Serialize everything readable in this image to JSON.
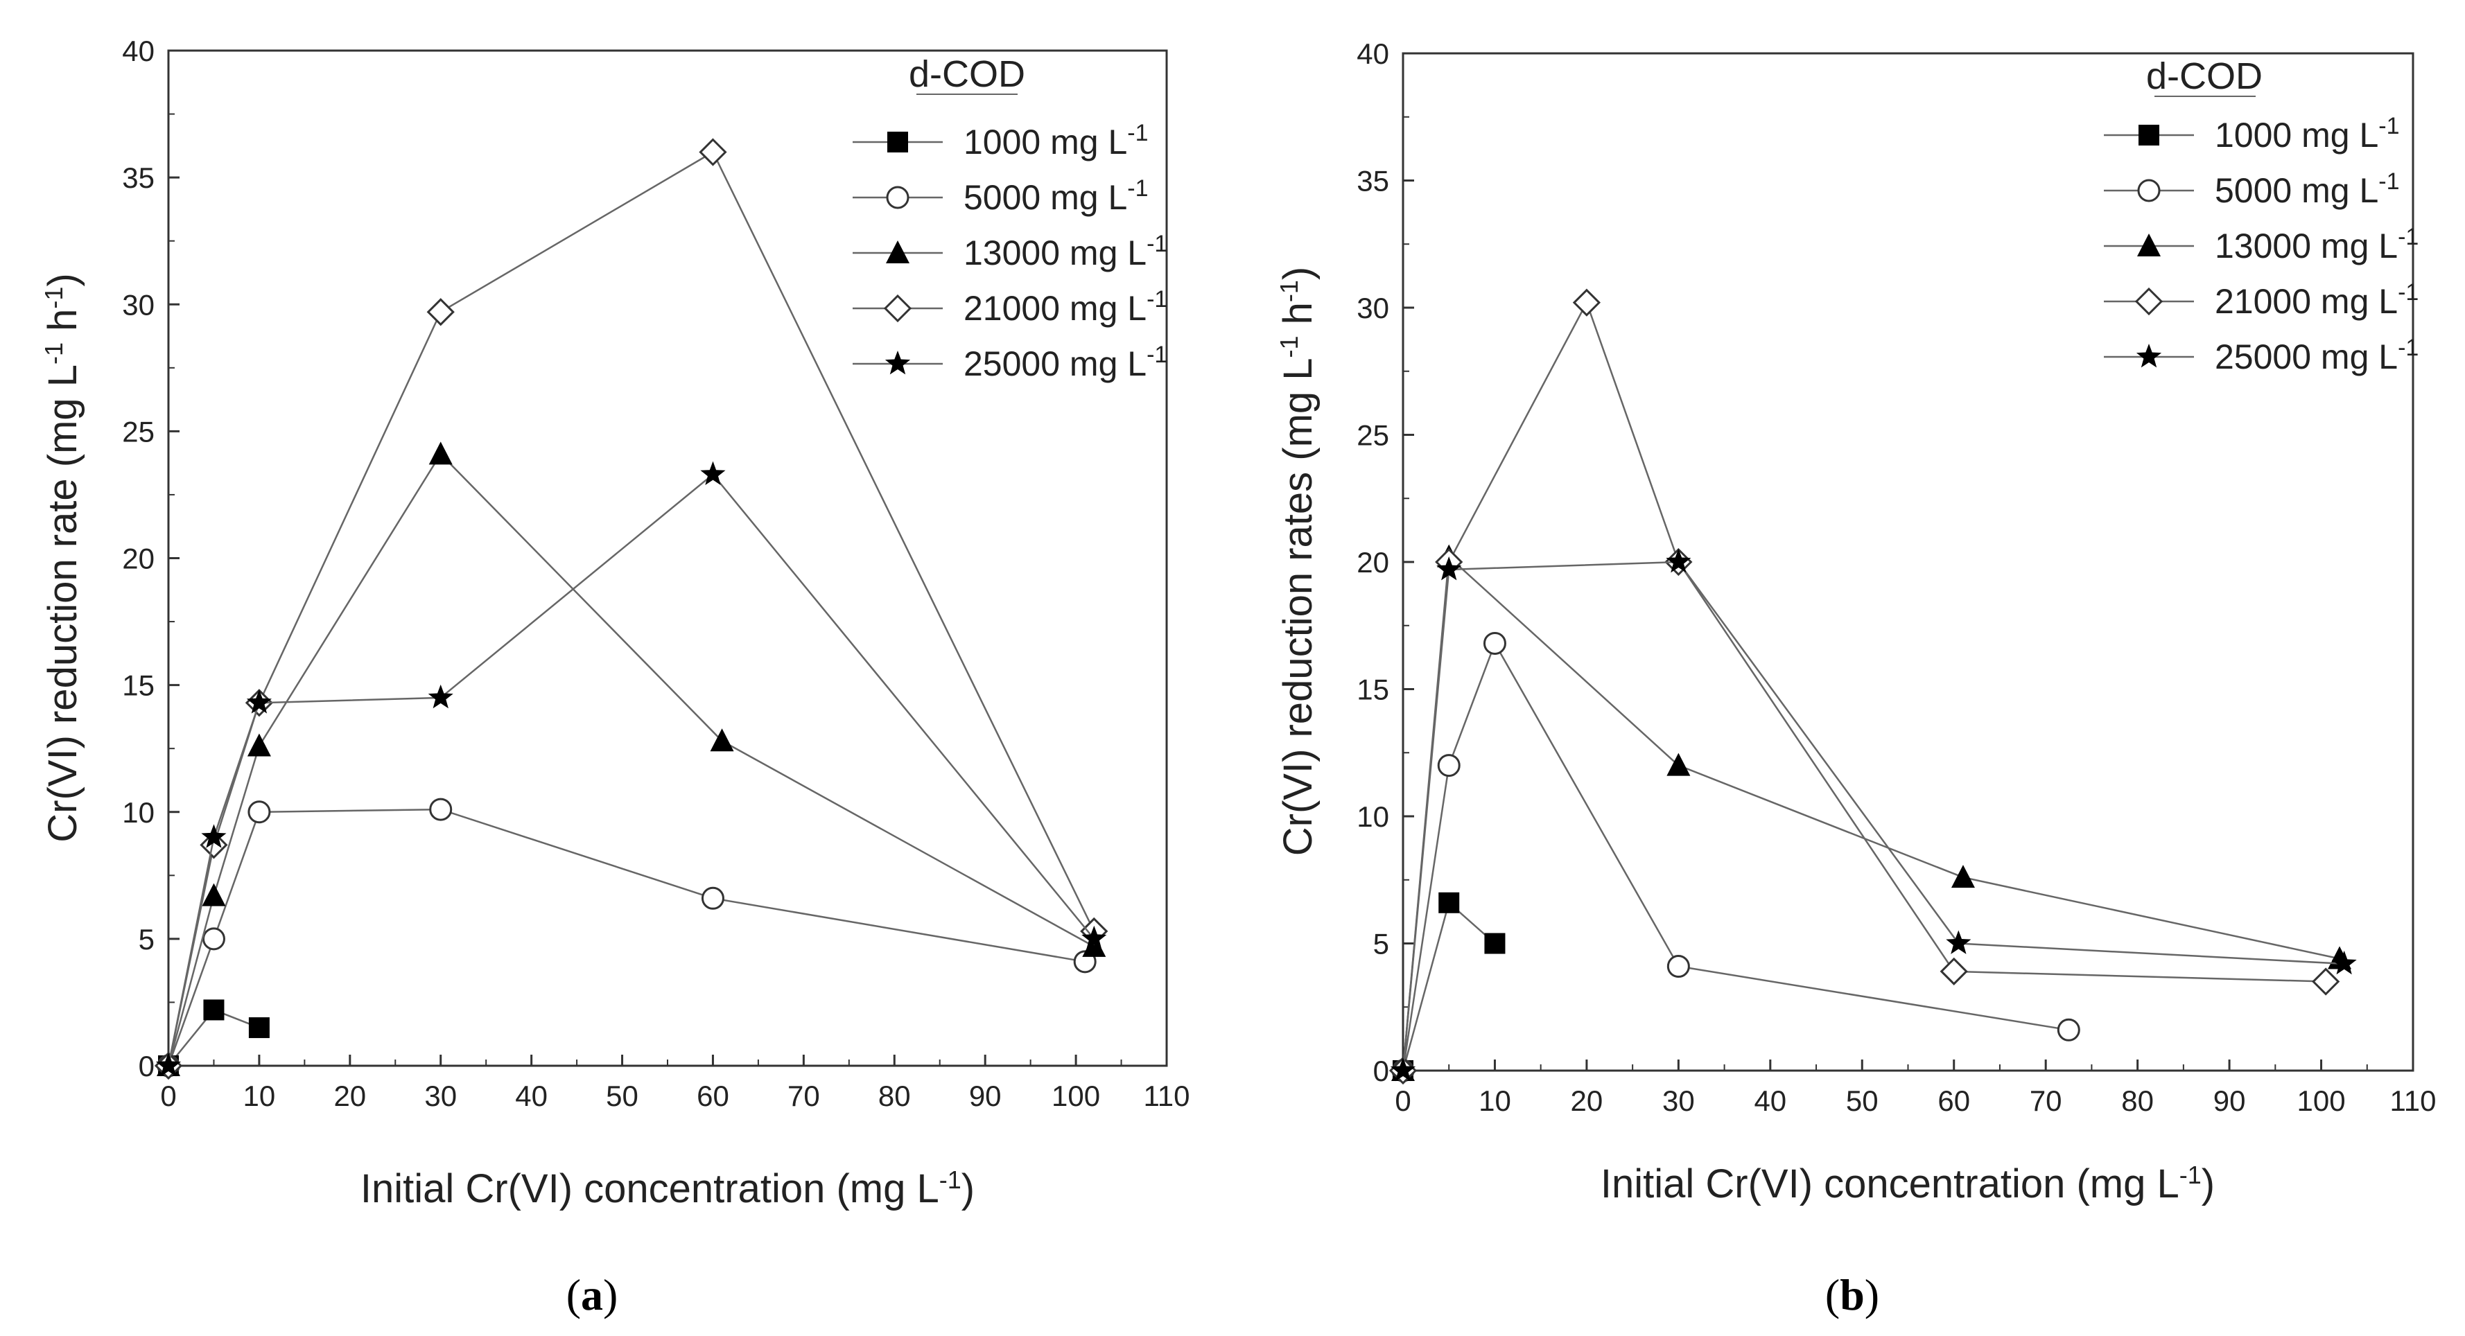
{
  "chart_data": [
    {
      "type": "line",
      "panel_label": "a",
      "xlabel_main": "Initial Cr(VI) concentration (mg L",
      "xlabel_sup": "-1",
      "xlabel_end": ")",
      "ylabel_main": "Cr(VI) reduction rate (mg L",
      "ylabel_sup1": "-1",
      "ylabel_mid": " h",
      "ylabel_sup2": "-1",
      "ylabel_end": ")",
      "xlim": [
        0,
        110
      ],
      "ylim": [
        0,
        40
      ],
      "xticks": [
        0,
        10,
        20,
        30,
        40,
        50,
        60,
        70,
        80,
        90,
        100,
        110
      ],
      "yticks": [
        0,
        5,
        10,
        15,
        20,
        25,
        30,
        35,
        40
      ],
      "legend_title": "d-COD",
      "legend_position": "top-right",
      "series": [
        {
          "name": "1000 mg L",
          "sup": "-1",
          "marker": "square-filled",
          "x": [
            0,
            5,
            10
          ],
          "y": [
            0,
            2.2,
            1.5
          ]
        },
        {
          "name": "5000 mg L",
          "sup": "-1",
          "marker": "circle-open",
          "x": [
            0,
            5,
            10,
            30,
            60,
            101
          ],
          "y": [
            0,
            5.0,
            10.0,
            10.1,
            6.6,
            4.1
          ]
        },
        {
          "name": "13000 mg L",
          "sup": "-1",
          "marker": "triangle-filled",
          "x": [
            0,
            5,
            10,
            30,
            61,
            102
          ],
          "y": [
            0,
            6.7,
            12.6,
            24.1,
            12.8,
            4.7
          ]
        },
        {
          "name": "21000 mg L",
          "sup": "-1",
          "marker": "diamond-open",
          "x": [
            0,
            5,
            10,
            30,
            60,
            102
          ],
          "y": [
            0,
            8.7,
            14.3,
            29.7,
            36.0,
            5.3
          ]
        },
        {
          "name": "25000 mg L",
          "sup": "-1",
          "marker": "star-filled",
          "x": [
            0,
            5,
            10,
            30,
            60,
            102
          ],
          "y": [
            0,
            9.0,
            14.3,
            14.5,
            23.3,
            5.0
          ]
        }
      ]
    },
    {
      "type": "line",
      "panel_label": "b",
      "xlabel_main": "Initial Cr(VI) concentration (mg L",
      "xlabel_sup": "-1",
      "xlabel_end": ")",
      "ylabel_main": "Cr(VI) reduction rates (mg L",
      "ylabel_sup1": "-1",
      "ylabel_mid": " h",
      "ylabel_sup2": "-1",
      "ylabel_end": ")",
      "xlim": [
        0,
        110
      ],
      "ylim": [
        0,
        40
      ],
      "xticks": [
        0,
        10,
        20,
        30,
        40,
        50,
        60,
        70,
        80,
        90,
        100,
        110
      ],
      "yticks": [
        0,
        5,
        10,
        15,
        20,
        25,
        30,
        35,
        40
      ],
      "legend_title": "d-COD",
      "legend_position": "top-right",
      "series": [
        {
          "name": "1000 mg L",
          "sup": "-1",
          "marker": "square-filled",
          "x": [
            0,
            5,
            10
          ],
          "y": [
            0,
            6.6,
            5.0
          ]
        },
        {
          "name": "5000 mg L",
          "sup": "-1",
          "marker": "circle-open",
          "x": [
            0,
            5,
            10,
            30,
            72.5
          ],
          "y": [
            0,
            12.0,
            16.8,
            4.1,
            1.6
          ]
        },
        {
          "name": "13000 mg L",
          "sup": "-1",
          "marker": "triangle-filled",
          "x": [
            0,
            5,
            30,
            61,
            102
          ],
          "y": [
            0,
            20.2,
            12.0,
            7.6,
            4.4
          ]
        },
        {
          "name": "21000 mg L",
          "sup": "-1",
          "marker": "diamond-open",
          "x": [
            0,
            5,
            20,
            30,
            60,
            100.5
          ],
          "y": [
            0,
            20.0,
            30.2,
            20.0,
            3.9,
            3.5
          ]
        },
        {
          "name": "25000 mg L",
          "sup": "-1",
          "marker": "star-filled",
          "x": [
            0,
            5,
            30,
            60.5,
            102.5
          ],
          "y": [
            0,
            19.7,
            20.0,
            5.0,
            4.2
          ]
        }
      ]
    }
  ]
}
